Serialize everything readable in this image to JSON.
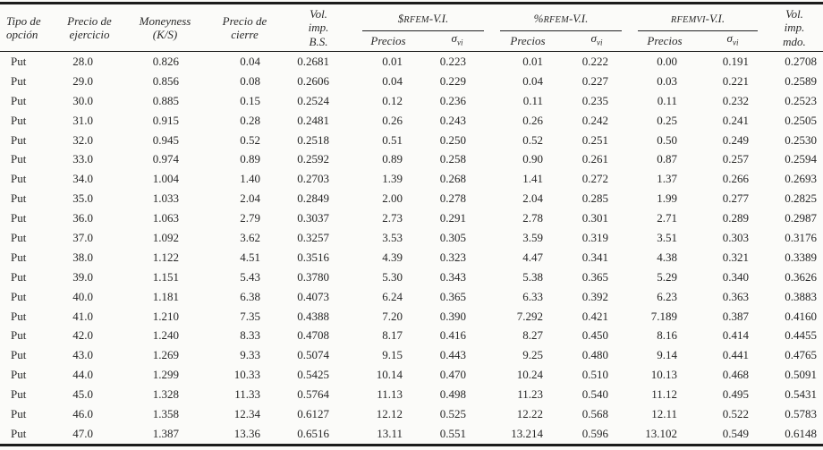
{
  "page": {
    "background": "#fbfbf9",
    "text_color": "#262626",
    "rule_color": "#1c1c1c"
  },
  "table": {
    "header": {
      "tipo_opcion": "Tipo de opción",
      "precio_ejercicio": "Precio de ejercicio",
      "moneyness": "Moneyness (K/S)",
      "precio_cierre": "Precio de cierre",
      "vol_imp_bs": "Vol. imp. B.S.",
      "vol_imp_mdo": "Vol. imp. mdo.",
      "groups": [
        {
          "prefix": "$",
          "acronym": "RFEM",
          "suffix": "-V.I."
        },
        {
          "prefix": "%",
          "acronym": "RFEM",
          "suffix": "-V.I."
        },
        {
          "prefix": "",
          "acronym": "RFEMVI",
          "suffix": "-V.I."
        }
      ],
      "sub_precios": "Precios",
      "sub_sigma": "σ",
      "sub_sigma_sub": "vi"
    },
    "rows": [
      [
        "Put",
        "28.0",
        "0.826",
        "0.04",
        "0.2681",
        "0.01",
        "0.223",
        "0.01",
        "0.222",
        "0.00",
        "0.191",
        "0.2708"
      ],
      [
        "Put",
        "29.0",
        "0.856",
        "0.08",
        "0.2606",
        "0.04",
        "0.229",
        "0.04",
        "0.227",
        "0.03",
        "0.221",
        "0.2589"
      ],
      [
        "Put",
        "30.0",
        "0.885",
        "0.15",
        "0.2524",
        "0.12",
        "0.236",
        "0.11",
        "0.235",
        "0.11",
        "0.232",
        "0.2523"
      ],
      [
        "Put",
        "31.0",
        "0.915",
        "0.28",
        "0.2481",
        "0.26",
        "0.243",
        "0.26",
        "0.242",
        "0.25",
        "0.241",
        "0.2505"
      ],
      [
        "Put",
        "32.0",
        "0.945",
        "0.52",
        "0.2518",
        "0.51",
        "0.250",
        "0.52",
        "0.251",
        "0.50",
        "0.249",
        "0.2530"
      ],
      [
        "Put",
        "33.0",
        "0.974",
        "0.89",
        "0.2592",
        "0.89",
        "0.258",
        "0.90",
        "0.261",
        "0.87",
        "0.257",
        "0.2594"
      ],
      [
        "Put",
        "34.0",
        "1.004",
        "1.40",
        "0.2703",
        "1.39",
        "0.268",
        "1.41",
        "0.272",
        "1.37",
        "0.266",
        "0.2693"
      ],
      [
        "Put",
        "35.0",
        "1.033",
        "2.04",
        "0.2849",
        "2.00",
        "0.278",
        "2.04",
        "0.285",
        "1.99",
        "0.277",
        "0.2825"
      ],
      [
        "Put",
        "36.0",
        "1.063",
        "2.79",
        "0.3037",
        "2.73",
        "0.291",
        "2.78",
        "0.301",
        "2.71",
        "0.289",
        "0.2987"
      ],
      [
        "Put",
        "37.0",
        "1.092",
        "3.62",
        "0.3257",
        "3.53",
        "0.305",
        "3.59",
        "0.319",
        "3.51",
        "0.303",
        "0.3176"
      ],
      [
        "Put",
        "38.0",
        "1.122",
        "4.51",
        "0.3516",
        "4.39",
        "0.323",
        "4.47",
        "0.341",
        "4.38",
        "0.321",
        "0.3389"
      ],
      [
        "Put",
        "39.0",
        "1.151",
        "5.43",
        "0.3780",
        "5.30",
        "0.343",
        "5.38",
        "0.365",
        "5.29",
        "0.340",
        "0.3626"
      ],
      [
        "Put",
        "40.0",
        "1.181",
        "6.38",
        "0.4073",
        "6.24",
        "0.365",
        "6.33",
        "0.392",
        "6.23",
        "0.363",
        "0.3883"
      ],
      [
        "Put",
        "41.0",
        "1.210",
        "7.35",
        "0.4388",
        "7.20",
        "0.390",
        "7.292",
        "0.421",
        "7.189",
        "0.387",
        "0.4160"
      ],
      [
        "Put",
        "42.0",
        "1.240",
        "8.33",
        "0.4708",
        "8.17",
        "0.416",
        "8.27",
        "0.450",
        "8.16",
        "0.414",
        "0.4455"
      ],
      [
        "Put",
        "43.0",
        "1.269",
        "9.33",
        "0.5074",
        "9.15",
        "0.443",
        "9.25",
        "0.480",
        "9.14",
        "0.441",
        "0.4765"
      ],
      [
        "Put",
        "44.0",
        "1.299",
        "10.33",
        "0.5425",
        "10.14",
        "0.470",
        "10.24",
        "0.510",
        "10.13",
        "0.468",
        "0.5091"
      ],
      [
        "Put",
        "45.0",
        "1.328",
        "11.33",
        "0.5764",
        "11.13",
        "0.498",
        "11.23",
        "0.540",
        "11.12",
        "0.495",
        "0.5431"
      ],
      [
        "Put",
        "46.0",
        "1.358",
        "12.34",
        "0.6127",
        "12.12",
        "0.525",
        "12.22",
        "0.568",
        "12.11",
        "0.522",
        "0.5783"
      ],
      [
        "Put",
        "47.0",
        "1.387",
        "13.36",
        "0.6516",
        "13.11",
        "0.551",
        "13.214",
        "0.596",
        "13.102",
        "0.549",
        "0.6148"
      ]
    ]
  }
}
